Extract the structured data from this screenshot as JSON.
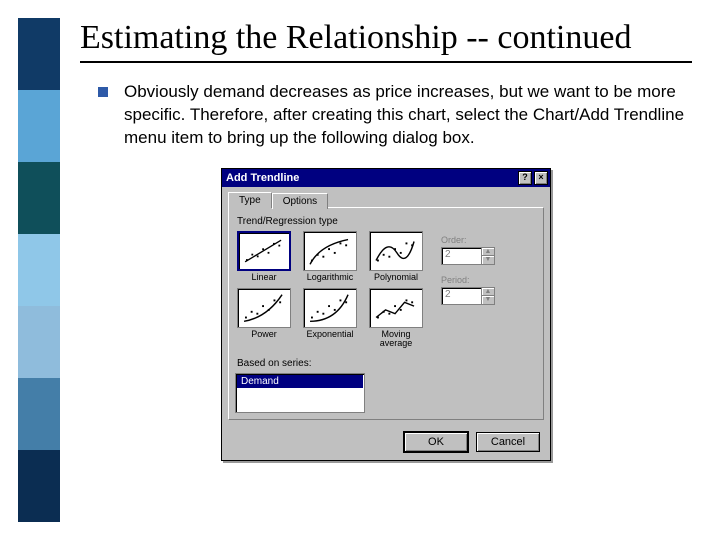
{
  "sidebar_colors": [
    "#103a66",
    "#5aa5d6",
    "#0f4f5a",
    "#8fc7e8",
    "#8fbcdc",
    "#447ea8",
    "#0b2d52"
  ],
  "title": "Estimating the Relationship -- continued",
  "bullet_color": "#2e5aa8",
  "body_text": "Obviously demand decreases as price increases, but we want to be more specific. Therefore, after creating this chart, select the Chart/Add Trendline menu item to bring up the following dialog box.",
  "dialog": {
    "title": "Add Trendline",
    "titlebar_bg": "#000080",
    "help_btn": "?",
    "close_btn": "×",
    "tabs": [
      {
        "label": "Type",
        "active": true
      },
      {
        "label": "Options",
        "active": false
      }
    ],
    "group_label": "Trend/Regression type",
    "types": [
      {
        "label": "Linear",
        "selected": true,
        "shape": "linear"
      },
      {
        "label": "Logarithmic",
        "selected": false,
        "shape": "log"
      },
      {
        "label": "Polynomial",
        "selected": false,
        "shape": "poly"
      },
      {
        "label": "Power",
        "selected": false,
        "shape": "power"
      },
      {
        "label": "Exponential",
        "selected": false,
        "shape": "exp"
      },
      {
        "label": "Moving average",
        "selected": false,
        "shape": "ma"
      }
    ],
    "order_field": {
      "label": "Order:",
      "value": "2",
      "disabled": true
    },
    "period_field": {
      "label": "Period:",
      "value": "2",
      "disabled": true
    },
    "series_label": "Based on series:",
    "series_items": [
      "Demand"
    ],
    "ok_label": "OK",
    "cancel_label": "Cancel"
  }
}
